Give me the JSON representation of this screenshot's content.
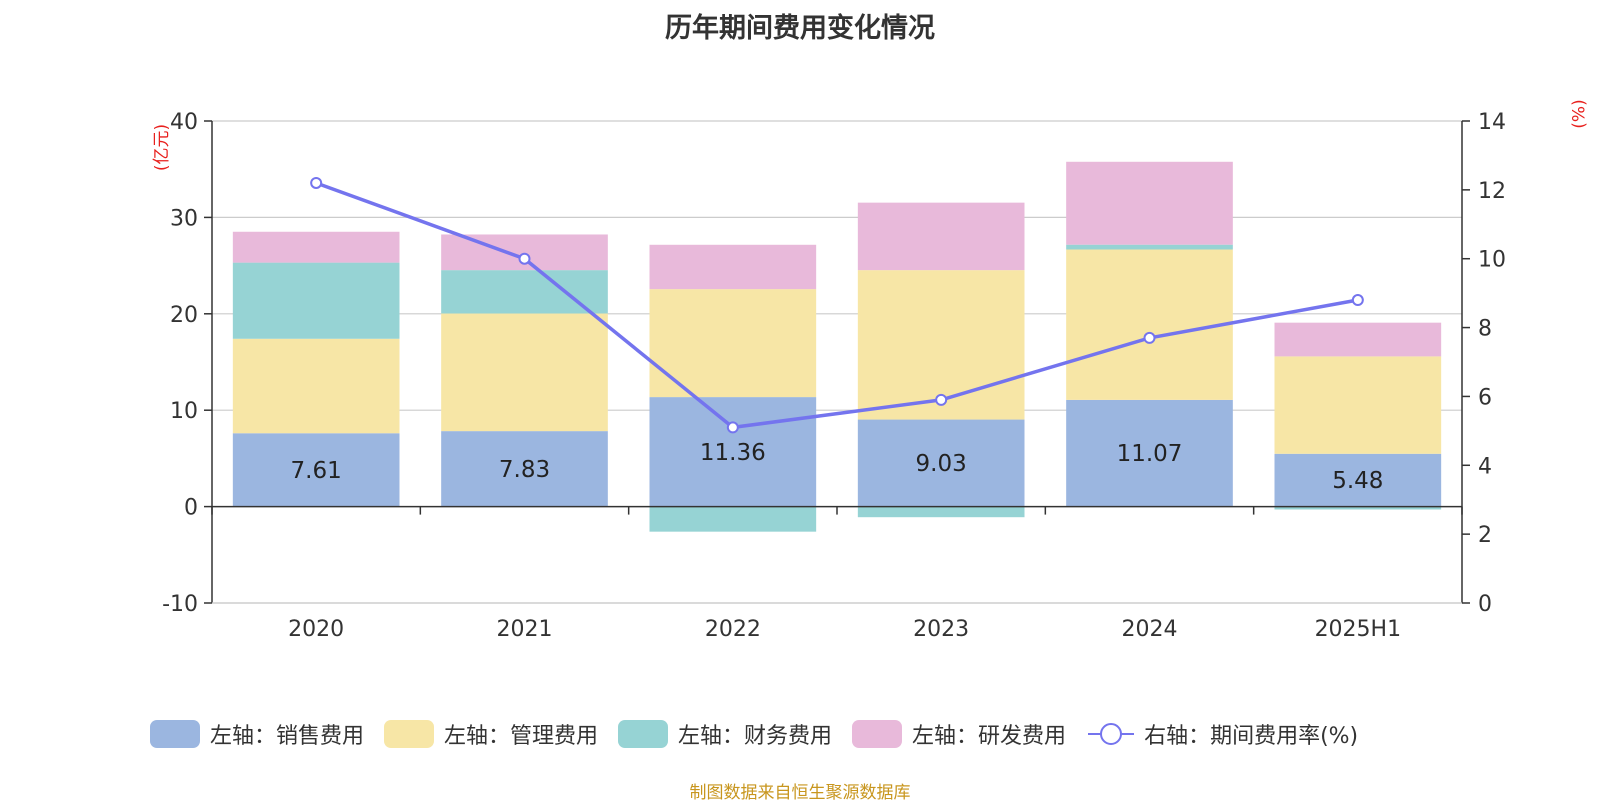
{
  "chart_data": {
    "type": "bar",
    "title": "历年期间费用变化情况",
    "left_axis_unit": "(亿元)",
    "right_axis_unit": "(%)",
    "categories": [
      "2020",
      "2021",
      "2022",
      "2023",
      "2024",
      "2025H1"
    ],
    "left_axis": {
      "min": -10,
      "max": 40,
      "ticks": [
        -10,
        0,
        10,
        20,
        30,
        40
      ]
    },
    "right_axis": {
      "min": 0,
      "max": 14,
      "ticks": [
        0,
        2,
        4,
        6,
        8,
        10,
        12,
        14
      ]
    },
    "stacked": true,
    "series": [
      {
        "name": "左轴：销售费用",
        "axis": "left",
        "type": "bar",
        "color": "#9bb6e0",
        "values": [
          7.61,
          7.83,
          11.36,
          9.03,
          11.07,
          5.48
        ],
        "labels_shown": true
      },
      {
        "name": "左轴：管理费用",
        "axis": "left",
        "type": "bar",
        "color": "#f7e6a6",
        "values": [
          9.8,
          12.2,
          11.2,
          15.5,
          15.6,
          10.1
        ]
      },
      {
        "name": "左轴：财务费用",
        "axis": "left",
        "type": "bar",
        "color": "#96d3d4",
        "values": [
          7.9,
          4.5,
          -2.6,
          -1.1,
          0.5,
          -0.3
        ]
      },
      {
        "name": "左轴：研发费用",
        "axis": "left",
        "type": "bar",
        "color": "#e8b9da",
        "values": [
          3.2,
          3.7,
          4.6,
          7.0,
          8.6,
          3.5
        ]
      },
      {
        "name": "右轴：期间费用率(%)",
        "axis": "right",
        "type": "line",
        "color": "#7474ee",
        "values": [
          12.2,
          10.0,
          5.1,
          5.9,
          7.7,
          8.8
        ]
      }
    ],
    "grid": true,
    "legend_position": "bottom"
  },
  "source_note": "制图数据来自恒生聚源数据库"
}
